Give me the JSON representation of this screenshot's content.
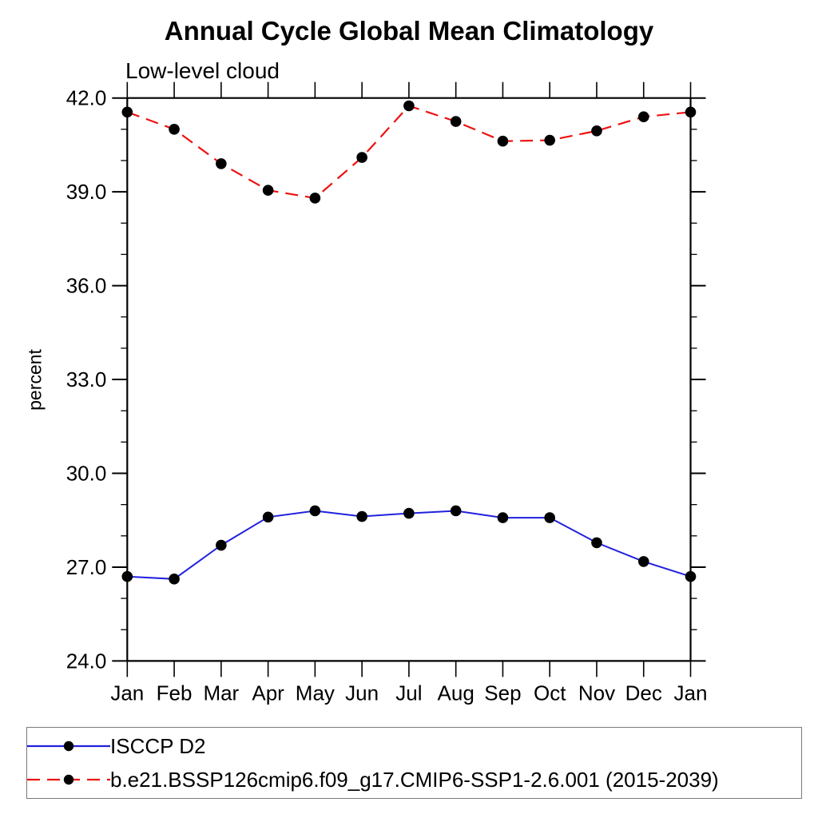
{
  "page": {
    "title": "Annual Cycle Global Mean Climatology",
    "subtitle": "Low-level cloud"
  },
  "chart_data": {
    "type": "line",
    "title": "Annual Cycle Global Mean Climatology",
    "subtitle": "Low-level cloud",
    "xlabel": "",
    "ylabel": "percent",
    "categories": [
      "Jan",
      "Feb",
      "Mar",
      "Apr",
      "May",
      "Jun",
      "Jul",
      "Aug",
      "Sep",
      "Oct",
      "Nov",
      "Dec",
      "Jan"
    ],
    "series": [
      {
        "name": "ISCCP D2",
        "color": "#2121de",
        "line_style": "solid",
        "marker": "filled-circle",
        "marker_color": "#000000",
        "values": [
          26.7,
          26.62,
          27.7,
          28.6,
          28.8,
          28.62,
          28.72,
          28.8,
          28.58,
          28.58,
          27.78,
          27.18,
          26.7
        ]
      },
      {
        "name": "b.e21.BSSP126cmip6.f09_g17.CMIP6-SSP1-2.6.001 (2015-2039)",
        "color": "#ee1111",
        "line_style": "dashed",
        "marker": "filled-circle",
        "marker_color": "#000000",
        "values": [
          41.55,
          41.0,
          39.9,
          39.05,
          38.8,
          40.1,
          41.75,
          41.25,
          40.62,
          40.65,
          40.95,
          41.4,
          41.55
        ]
      }
    ],
    "ylim": [
      24.0,
      42.0
    ],
    "ytick_major_labels": [
      "24.0",
      "27.0",
      "30.0",
      "33.0",
      "36.0",
      "39.0",
      "42.0"
    ],
    "ytick_major_values": [
      24,
      27,
      30,
      33,
      36,
      39,
      42
    ],
    "ytick_minor_step": 1,
    "grid": false,
    "tick_direction": "out",
    "legend_position": "bottom-left-box"
  },
  "legend": {
    "items": [
      {
        "label": "ISCCP D2"
      },
      {
        "label": "b.e21.BSSP126cmip6.f09_g17.CMIP6-SSP1-2.6.001 (2015-2039)"
      }
    ]
  },
  "colors": {
    "series_blue": "#2121de",
    "series_red": "#ee1111",
    "marker": "#000000",
    "axis": "#000000",
    "legend_border": "#7a7a7a",
    "background": "#ffffff"
  }
}
